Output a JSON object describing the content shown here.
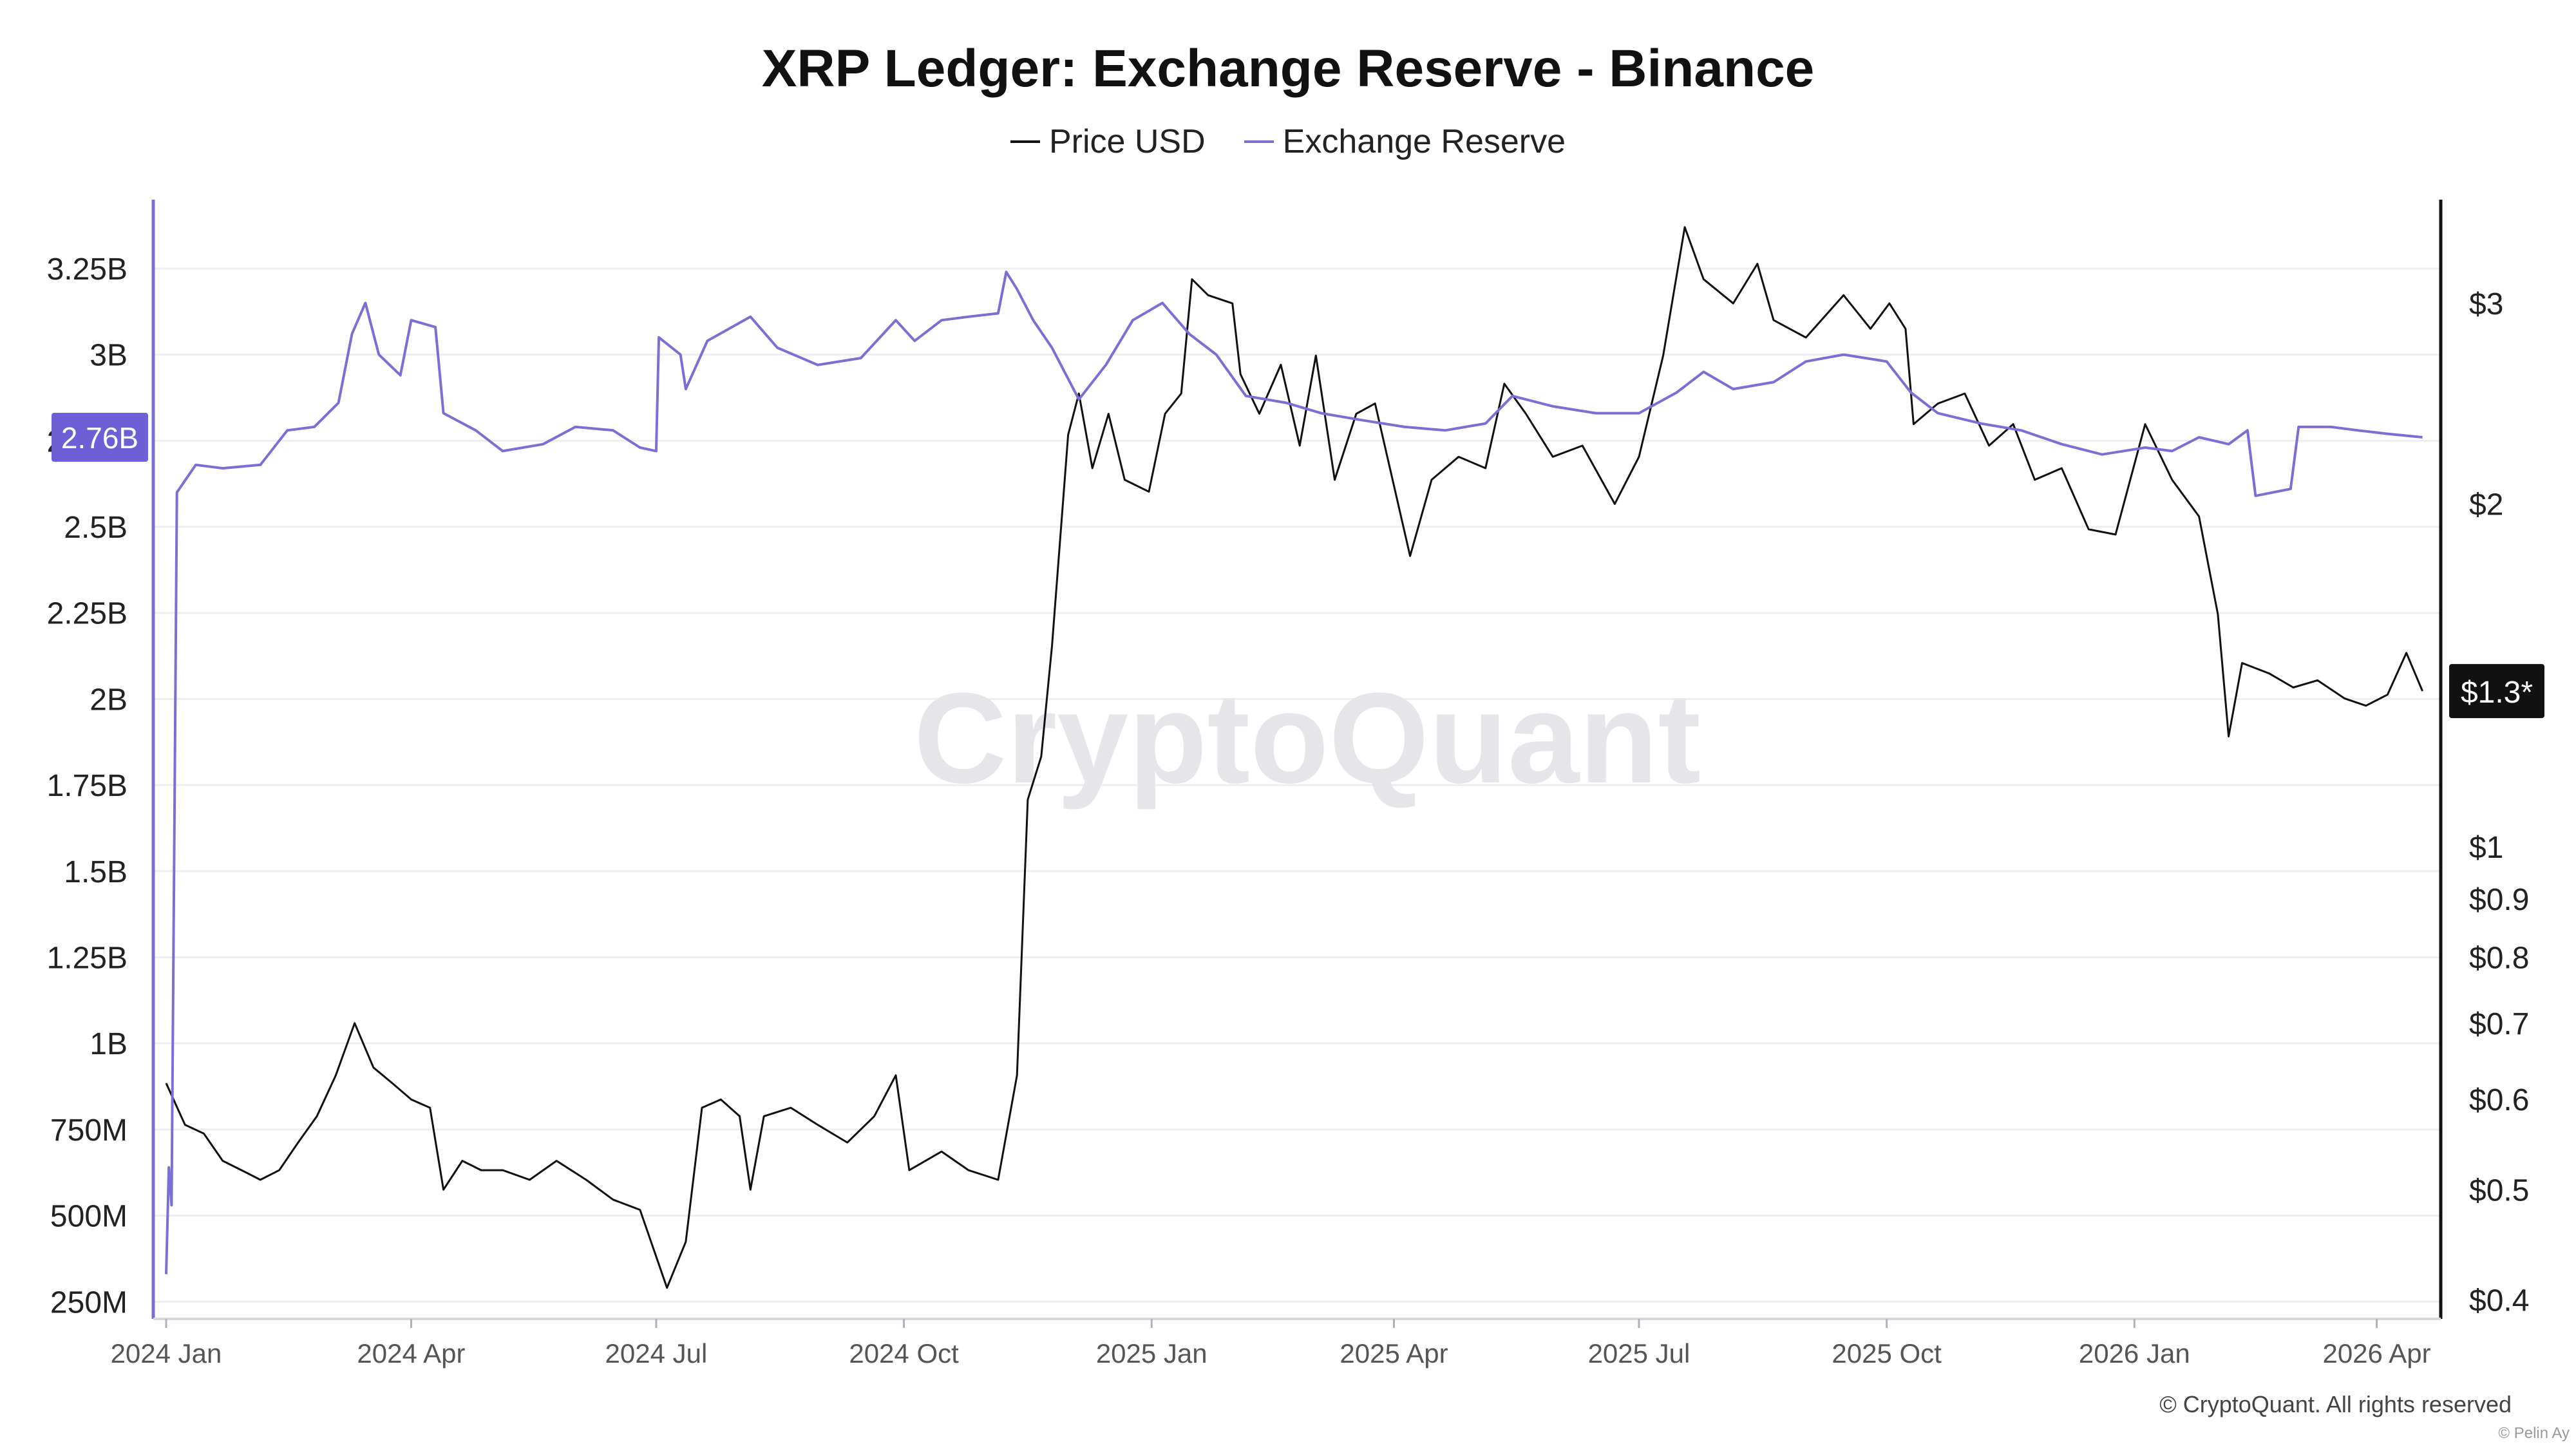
{
  "chart_data": {
    "type": "line",
    "title": "XRP Ledger: Exchange Reserve - Binance",
    "watermark": "CryptoQuant",
    "copyright": "© CryptoQuant. All rights reserved",
    "credit": "© Pelin Ay",
    "legend": {
      "placement": "top-center"
    },
    "grid": true,
    "x_axis": {
      "range": [
        "2024-01-01",
        "2026-04-20"
      ],
      "ticks": [
        {
          "date": "2024-01-01",
          "label": "2024 Jan"
        },
        {
          "date": "2024-04-01",
          "label": "2024 Apr"
        },
        {
          "date": "2024-07-01",
          "label": "2024 Jul"
        },
        {
          "date": "2024-10-01",
          "label": "2024 Oct"
        },
        {
          "date": "2025-01-01",
          "label": "2025 Jan"
        },
        {
          "date": "2025-04-01",
          "label": "2025 Apr"
        },
        {
          "date": "2025-07-01",
          "label": "2025 Jul"
        },
        {
          "date": "2025-10-01",
          "label": "2025 Oct"
        },
        {
          "date": "2026-01-01",
          "label": "2026 Jan"
        },
        {
          "date": "2026-04-01",
          "label": "2026 Apr"
        }
      ]
    },
    "y_left": {
      "scale": "linear",
      "range": [
        200000000,
        3450000000
      ],
      "ticks": [
        {
          "value": 250000000,
          "label": "250M"
        },
        {
          "value": 500000000,
          "label": "500M"
        },
        {
          "value": 750000000,
          "label": "750M"
        },
        {
          "value": 1000000000,
          "label": "1B"
        },
        {
          "value": 1250000000,
          "label": "1.25B"
        },
        {
          "value": 1500000000,
          "label": "1.5B"
        },
        {
          "value": 1750000000,
          "label": "1.75B"
        },
        {
          "value": 2000000000,
          "label": "2B"
        },
        {
          "value": 2250000000,
          "label": "2.25B"
        },
        {
          "value": 2500000000,
          "label": "2.5B"
        },
        {
          "value": 2750000000,
          "label": "2.75B"
        },
        {
          "value": 3000000000,
          "label": "3B"
        },
        {
          "value": 3250000000,
          "label": "3.25B"
        }
      ],
      "current_marker": {
        "value": 2760000000,
        "label": "2.76B",
        "color": "#6f5fd6"
      }
    },
    "y_right": {
      "scale": "log",
      "range": [
        0.385,
        3.7
      ],
      "ticks": [
        {
          "value": 0.4,
          "label": "$0.4"
        },
        {
          "value": 0.5,
          "label": "$0.5"
        },
        {
          "value": 0.6,
          "label": "$0.6"
        },
        {
          "value": 0.7,
          "label": "$0.7"
        },
        {
          "value": 0.8,
          "label": "$0.8"
        },
        {
          "value": 0.9,
          "label": "$0.9"
        },
        {
          "value": 1,
          "label": "$1"
        },
        {
          "value": 2,
          "label": "$2"
        },
        {
          "value": 3,
          "label": "$3"
        }
      ],
      "current_marker": {
        "value": 1.37,
        "label": "$1.3*",
        "color": "#111111"
      }
    },
    "series": [
      {
        "name": "Price USD",
        "axis": "right",
        "color": "#111111",
        "points": [
          [
            "2024-01-01",
            0.62
          ],
          [
            "2024-01-08",
            0.57
          ],
          [
            "2024-01-15",
            0.56
          ],
          [
            "2024-01-22",
            0.53
          ],
          [
            "2024-01-29",
            0.52
          ],
          [
            "2024-02-05",
            0.51
          ],
          [
            "2024-02-12",
            0.52
          ],
          [
            "2024-02-19",
            0.55
          ],
          [
            "2024-02-26",
            0.58
          ],
          [
            "2024-03-04",
            0.63
          ],
          [
            "2024-03-11",
            0.7
          ],
          [
            "2024-03-18",
            0.64
          ],
          [
            "2024-03-25",
            0.62
          ],
          [
            "2024-04-01",
            0.6
          ],
          [
            "2024-04-08",
            0.59
          ],
          [
            "2024-04-13",
            0.5
          ],
          [
            "2024-04-20",
            0.53
          ],
          [
            "2024-04-27",
            0.52
          ],
          [
            "2024-05-05",
            0.52
          ],
          [
            "2024-05-15",
            0.51
          ],
          [
            "2024-05-25",
            0.53
          ],
          [
            "2024-06-05",
            0.51
          ],
          [
            "2024-06-15",
            0.49
          ],
          [
            "2024-06-25",
            0.48
          ],
          [
            "2024-07-05",
            0.41
          ],
          [
            "2024-07-12",
            0.45
          ],
          [
            "2024-07-18",
            0.59
          ],
          [
            "2024-07-25",
            0.6
          ],
          [
            "2024-08-01",
            0.58
          ],
          [
            "2024-08-05",
            0.5
          ],
          [
            "2024-08-10",
            0.58
          ],
          [
            "2024-08-20",
            0.59
          ],
          [
            "2024-08-30",
            0.57
          ],
          [
            "2024-09-10",
            0.55
          ],
          [
            "2024-09-20",
            0.58
          ],
          [
            "2024-09-28",
            0.63
          ],
          [
            "2024-10-03",
            0.52
          ],
          [
            "2024-10-15",
            0.54
          ],
          [
            "2024-10-25",
            0.52
          ],
          [
            "2024-11-05",
            0.51
          ],
          [
            "2024-11-12",
            0.63
          ],
          [
            "2024-11-16",
            1.1
          ],
          [
            "2024-11-21",
            1.2
          ],
          [
            "2024-11-25",
            1.5
          ],
          [
            "2024-12-01",
            2.3
          ],
          [
            "2024-12-05",
            2.5
          ],
          [
            "2024-12-10",
            2.15
          ],
          [
            "2024-12-16",
            2.4
          ],
          [
            "2024-12-22",
            2.1
          ],
          [
            "2024-12-31",
            2.05
          ],
          [
            "2025-01-06",
            2.4
          ],
          [
            "2025-01-12",
            2.5
          ],
          [
            "2025-01-16",
            3.15
          ],
          [
            "2025-01-22",
            3.05
          ],
          [
            "2025-01-31",
            3.0
          ],
          [
            "2025-02-03",
            2.6
          ],
          [
            "2025-02-10",
            2.4
          ],
          [
            "2025-02-18",
            2.65
          ],
          [
            "2025-02-25",
            2.25
          ],
          [
            "2025-03-03",
            2.7
          ],
          [
            "2025-03-10",
            2.1
          ],
          [
            "2025-03-18",
            2.4
          ],
          [
            "2025-03-25",
            2.45
          ],
          [
            "2025-04-07",
            1.8
          ],
          [
            "2025-04-15",
            2.1
          ],
          [
            "2025-04-25",
            2.2
          ],
          [
            "2025-05-05",
            2.15
          ],
          [
            "2025-05-12",
            2.55
          ],
          [
            "2025-05-20",
            2.4
          ],
          [
            "2025-05-30",
            2.2
          ],
          [
            "2025-06-10",
            2.25
          ],
          [
            "2025-06-22",
            2.0
          ],
          [
            "2025-07-01",
            2.2
          ],
          [
            "2025-07-10",
            2.7
          ],
          [
            "2025-07-18",
            3.5
          ],
          [
            "2025-07-25",
            3.15
          ],
          [
            "2025-08-05",
            3.0
          ],
          [
            "2025-08-14",
            3.25
          ],
          [
            "2025-08-20",
            2.9
          ],
          [
            "2025-09-01",
            2.8
          ],
          [
            "2025-09-15",
            3.05
          ],
          [
            "2025-09-25",
            2.85
          ],
          [
            "2025-10-02",
            3.0
          ],
          [
            "2025-10-08",
            2.85
          ],
          [
            "2025-10-11",
            2.35
          ],
          [
            "2025-10-20",
            2.45
          ],
          [
            "2025-10-30",
            2.5
          ],
          [
            "2025-11-08",
            2.25
          ],
          [
            "2025-11-17",
            2.35
          ],
          [
            "2025-11-25",
            2.1
          ],
          [
            "2025-12-05",
            2.15
          ],
          [
            "2025-12-15",
            1.9
          ],
          [
            "2025-12-25",
            1.88
          ],
          [
            "2026-01-05",
            2.35
          ],
          [
            "2026-01-15",
            2.1
          ],
          [
            "2026-01-25",
            1.95
          ],
          [
            "2026-02-01",
            1.6
          ],
          [
            "2026-02-05",
            1.25
          ],
          [
            "2026-02-10",
            1.45
          ],
          [
            "2026-02-20",
            1.42
          ],
          [
            "2026-03-01",
            1.38
          ],
          [
            "2026-03-10",
            1.4
          ],
          [
            "2026-03-20",
            1.35
          ],
          [
            "2026-03-28",
            1.33
          ],
          [
            "2026-04-05",
            1.36
          ],
          [
            "2026-04-12",
            1.48
          ],
          [
            "2026-04-18",
            1.37
          ]
        ]
      },
      {
        "name": "Exchange Reserve",
        "axis": "left",
        "color": "#7b6fd6",
        "points": [
          [
            "2024-01-01",
            330000000
          ],
          [
            "2024-01-02",
            640000000
          ],
          [
            "2024-01-03",
            530000000
          ],
          [
            "2024-01-05",
            2600000000
          ],
          [
            "2024-01-12",
            2680000000
          ],
          [
            "2024-01-22",
            2670000000
          ],
          [
            "2024-02-05",
            2680000000
          ],
          [
            "2024-02-15",
            2780000000
          ],
          [
            "2024-02-25",
            2790000000
          ],
          [
            "2024-03-05",
            2860000000
          ],
          [
            "2024-03-10",
            3060000000
          ],
          [
            "2024-03-15",
            3150000000
          ],
          [
            "2024-03-20",
            3000000000
          ],
          [
            "2024-03-28",
            2940000000
          ],
          [
            "2024-04-01",
            3100000000
          ],
          [
            "2024-04-10",
            3080000000
          ],
          [
            "2024-04-13",
            2830000000
          ],
          [
            "2024-04-25",
            2780000000
          ],
          [
            "2024-05-05",
            2720000000
          ],
          [
            "2024-05-20",
            2740000000
          ],
          [
            "2024-06-01",
            2790000000
          ],
          [
            "2024-06-15",
            2780000000
          ],
          [
            "2024-06-25",
            2730000000
          ],
          [
            "2024-07-01",
            2720000000
          ],
          [
            "2024-07-02",
            3050000000
          ],
          [
            "2024-07-10",
            3000000000
          ],
          [
            "2024-07-12",
            2900000000
          ],
          [
            "2024-07-20",
            3040000000
          ],
          [
            "2024-08-05",
            3110000000
          ],
          [
            "2024-08-15",
            3020000000
          ],
          [
            "2024-08-30",
            2970000000
          ],
          [
            "2024-09-15",
            2990000000
          ],
          [
            "2024-09-28",
            3100000000
          ],
          [
            "2024-10-05",
            3040000000
          ],
          [
            "2024-10-15",
            3100000000
          ],
          [
            "2024-10-25",
            3110000000
          ],
          [
            "2024-11-05",
            3120000000
          ],
          [
            "2024-11-08",
            3240000000
          ],
          [
            "2024-11-12",
            3190000000
          ],
          [
            "2024-11-18",
            3100000000
          ],
          [
            "2024-11-25",
            3020000000
          ],
          [
            "2024-12-05",
            2870000000
          ],
          [
            "2024-12-15",
            2970000000
          ],
          [
            "2024-12-25",
            3100000000
          ],
          [
            "2025-01-05",
            3150000000
          ],
          [
            "2025-01-15",
            3060000000
          ],
          [
            "2025-01-25",
            3000000000
          ],
          [
            "2025-02-05",
            2880000000
          ],
          [
            "2025-02-20",
            2860000000
          ],
          [
            "2025-03-05",
            2830000000
          ],
          [
            "2025-03-20",
            2810000000
          ],
          [
            "2025-04-05",
            2790000000
          ],
          [
            "2025-04-20",
            2780000000
          ],
          [
            "2025-05-05",
            2800000000
          ],
          [
            "2025-05-15",
            2880000000
          ],
          [
            "2025-05-30",
            2850000000
          ],
          [
            "2025-06-15",
            2830000000
          ],
          [
            "2025-07-01",
            2830000000
          ],
          [
            "2025-07-15",
            2890000000
          ],
          [
            "2025-07-25",
            2950000000
          ],
          [
            "2025-08-05",
            2900000000
          ],
          [
            "2025-08-20",
            2920000000
          ],
          [
            "2025-09-01",
            2980000000
          ],
          [
            "2025-09-15",
            3000000000
          ],
          [
            "2025-10-01",
            2980000000
          ],
          [
            "2025-10-10",
            2890000000
          ],
          [
            "2025-10-20",
            2830000000
          ],
          [
            "2025-11-05",
            2800000000
          ],
          [
            "2025-11-20",
            2780000000
          ],
          [
            "2025-12-05",
            2740000000
          ],
          [
            "2025-12-20",
            2710000000
          ],
          [
            "2026-01-05",
            2730000000
          ],
          [
            "2026-01-15",
            2720000000
          ],
          [
            "2026-01-25",
            2760000000
          ],
          [
            "2026-02-05",
            2740000000
          ],
          [
            "2026-02-12",
            2780000000
          ],
          [
            "2026-02-15",
            2590000000
          ],
          [
            "2026-02-28",
            2610000000
          ],
          [
            "2026-03-03",
            2790000000
          ],
          [
            "2026-03-15",
            2790000000
          ],
          [
            "2026-03-25",
            2780000000
          ],
          [
            "2026-04-05",
            2770000000
          ],
          [
            "2026-04-18",
            2760000000
          ]
        ]
      }
    ]
  }
}
